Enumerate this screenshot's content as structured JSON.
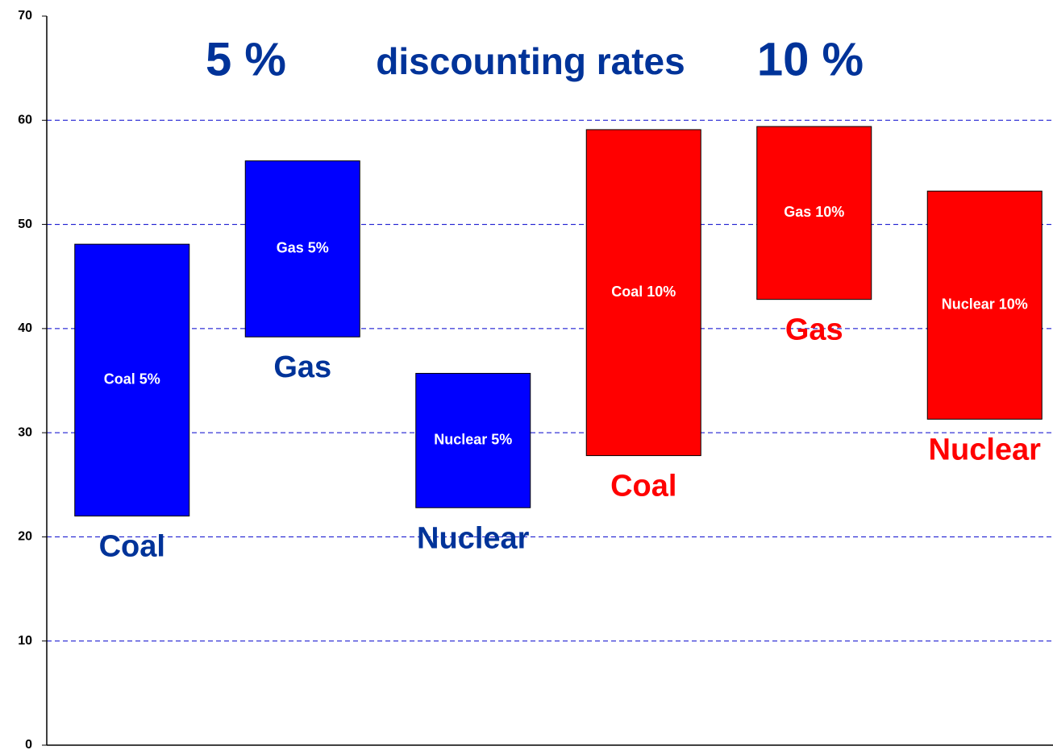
{
  "chart_data": {
    "type": "range_bar",
    "subtitle_left": "5 %",
    "subtitle_center": "discounting rates",
    "subtitle_right": "10 %",
    "categories": [
      "Coal 5%",
      "Gas 5%",
      "Nuclear 5%",
      "Coal 10%",
      "Gas 10%",
      "Nuclear 10%"
    ],
    "low": [
      22.0,
      39.2,
      22.8,
      27.8,
      42.8,
      31.3
    ],
    "high": [
      48.1,
      56.1,
      35.7,
      59.1,
      59.4,
      53.2
    ],
    "bar_labels": [
      "Coal",
      "Gas",
      "Nuclear",
      "Coal",
      "Gas",
      "Nuclear"
    ],
    "colors": [
      "#0000ff",
      "#0000ff",
      "#0000ff",
      "#ff0000",
      "#ff0000",
      "#ff0000"
    ],
    "label_colors": [
      "#003399",
      "#003399",
      "#003399",
      "#ff0000",
      "#ff0000",
      "#ff0000"
    ],
    "ylim": [
      0,
      70
    ],
    "yticks": [
      0,
      10,
      20,
      30,
      40,
      50,
      60,
      70
    ],
    "grid": true
  }
}
